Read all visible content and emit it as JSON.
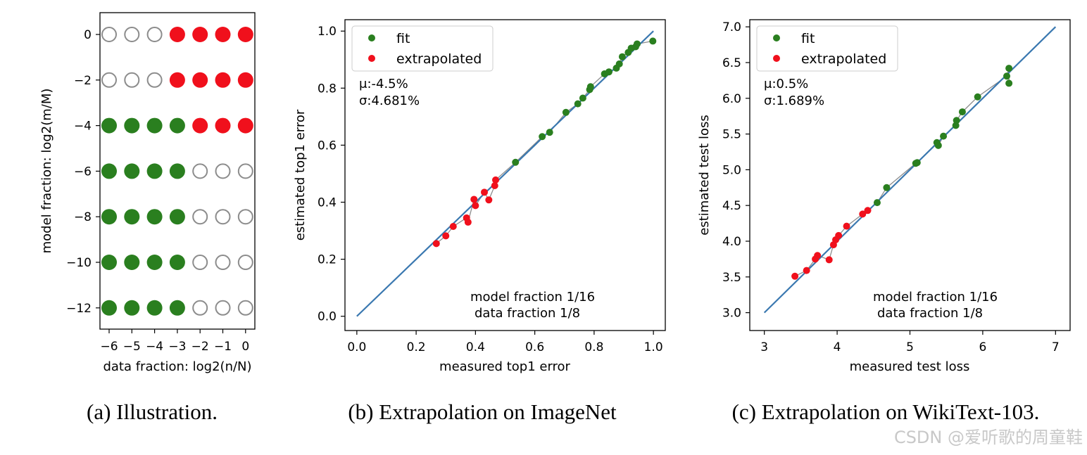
{
  "colors": {
    "fit": "#2a7f1f",
    "extrapolated": "#f0101c",
    "empty": "#8c8c8c",
    "line": "#3a78b0",
    "connector": "#8c8c8c"
  },
  "watermark": "CSDN @爱听歌的周童鞋",
  "chart_data": [
    {
      "type": "scatter",
      "title": "",
      "caption": "(a) Illustration.",
      "xlabel": "data fraction: log2(n/N)",
      "ylabel": "model fraction: log2(m/M)",
      "x_ticks": [
        "−6",
        "−5",
        "−4",
        "−3",
        "−2",
        "−1",
        "0"
      ],
      "y_ticks": [
        "0",
        "−2",
        "−4",
        "−6",
        "−8",
        "−10",
        "−12"
      ],
      "x_values": [
        -6,
        -5,
        -4,
        -3,
        -2,
        -1,
        0
      ],
      "y_values": [
        0,
        -2,
        -4,
        -6,
        -8,
        -10,
        -12
      ],
      "grid": [
        [
          "empty",
          "empty",
          "empty",
          "extrapolated",
          "extrapolated",
          "extrapolated",
          "extrapolated"
        ],
        [
          "empty",
          "empty",
          "empty",
          "extrapolated",
          "extrapolated",
          "extrapolated",
          "extrapolated"
        ],
        [
          "fit",
          "fit",
          "fit",
          "fit",
          "extrapolated",
          "extrapolated",
          "extrapolated"
        ],
        [
          "fit",
          "fit",
          "fit",
          "fit",
          "empty",
          "empty",
          "empty"
        ],
        [
          "fit",
          "fit",
          "fit",
          "fit",
          "empty",
          "empty",
          "empty"
        ],
        [
          "fit",
          "fit",
          "fit",
          "fit",
          "empty",
          "empty",
          "empty"
        ],
        [
          "fit",
          "fit",
          "fit",
          "fit",
          "empty",
          "empty",
          "empty"
        ]
      ]
    },
    {
      "type": "scatter",
      "title": "",
      "caption": "(b) Extrapolation on ImageNet",
      "xlabel": "measured top1 error",
      "ylabel": "estimated top1 error",
      "xlim": [
        -0.04,
        1.04
      ],
      "ylim": [
        -0.05,
        1.04
      ],
      "x_ticks": [
        "0.0",
        "0.2",
        "0.4",
        "0.6",
        "0.8",
        "1.0"
      ],
      "y_ticks": [
        "0.0",
        "0.2",
        "0.4",
        "0.6",
        "0.8",
        "1.0"
      ],
      "legend": [
        "fit",
        "extrapolated"
      ],
      "legend_position": "top-left",
      "stats": [
        "μ:-4.5%",
        "σ:4.681%"
      ],
      "annotation": [
        "model fraction 1/16",
        "data fraction 1/8"
      ],
      "diagonal": [
        [
          0,
          0
        ],
        [
          1,
          1
        ]
      ],
      "series": [
        {
          "name": "fit",
          "points": [
            [
              0.535,
              0.54
            ],
            [
              0.625,
              0.63
            ],
            [
              0.65,
              0.645
            ],
            [
              0.705,
              0.715
            ],
            [
              0.745,
              0.745
            ],
            [
              0.762,
              0.765
            ],
            [
              0.785,
              0.795
            ],
            [
              0.788,
              0.805
            ],
            [
              0.835,
              0.85
            ],
            [
              0.85,
              0.857
            ],
            [
              0.875,
              0.87
            ],
            [
              0.885,
              0.885
            ],
            [
              0.895,
              0.91
            ],
            [
              0.915,
              0.925
            ],
            [
              0.925,
              0.94
            ],
            [
              0.94,
              0.945
            ],
            [
              0.945,
              0.955
            ],
            [
              0.998,
              0.965
            ]
          ]
        },
        {
          "name": "extrapolated",
          "points": [
            [
              0.268,
              0.255
            ],
            [
              0.3,
              0.282
            ],
            [
              0.325,
              0.315
            ],
            [
              0.37,
              0.345
            ],
            [
              0.375,
              0.33
            ],
            [
              0.395,
              0.41
            ],
            [
              0.4,
              0.388
            ],
            [
              0.43,
              0.435
            ],
            [
              0.445,
              0.408
            ],
            [
              0.465,
              0.458
            ],
            [
              0.468,
              0.478
            ]
          ]
        }
      ]
    },
    {
      "type": "scatter",
      "title": "",
      "caption": "(c) Extrapolation on WikiText-103.",
      "xlabel": "measured test loss",
      "ylabel": "estimated test loss",
      "xlim": [
        2.8,
        7.2
      ],
      "ylim": [
        2.75,
        7.1
      ],
      "x_ticks": [
        "3",
        "4",
        "5",
        "6",
        "7"
      ],
      "y_ticks": [
        "3.0",
        "3.5",
        "4.0",
        "4.5",
        "5.0",
        "5.5",
        "6.0",
        "6.5",
        "7.0"
      ],
      "legend": [
        "fit",
        "extrapolated"
      ],
      "legend_position": "top-left",
      "stats": [
        "μ:0.5%",
        "σ:1.689%"
      ],
      "annotation": [
        "model fraction 1/16",
        "data fraction 1/8"
      ],
      "diagonal": [
        [
          3,
          3
        ],
        [
          7,
          7
        ]
      ],
      "series": [
        {
          "name": "fit",
          "points": [
            [
              4.55,
              4.54
            ],
            [
              4.68,
              4.75
            ],
            [
              5.08,
              5.09
            ],
            [
              5.1,
              5.1
            ],
            [
              5.37,
              5.38
            ],
            [
              5.39,
              5.34
            ],
            [
              5.46,
              5.47
            ],
            [
              5.63,
              5.62
            ],
            [
              5.64,
              5.69
            ],
            [
              5.72,
              5.81
            ],
            [
              5.93,
              6.02
            ],
            [
              6.33,
              6.31
            ],
            [
              6.36,
              6.42
            ],
            [
              6.36,
              6.21
            ]
          ]
        },
        {
          "name": "extrapolated",
          "points": [
            [
              3.42,
              3.51
            ],
            [
              3.58,
              3.59
            ],
            [
              3.7,
              3.75
            ],
            [
              3.73,
              3.8
            ],
            [
              3.89,
              3.74
            ],
            [
              3.95,
              3.95
            ],
            [
              3.98,
              4.02
            ],
            [
              4.02,
              4.08
            ],
            [
              4.13,
              4.21
            ],
            [
              4.35,
              4.38
            ],
            [
              4.42,
              4.43
            ]
          ]
        }
      ]
    }
  ]
}
